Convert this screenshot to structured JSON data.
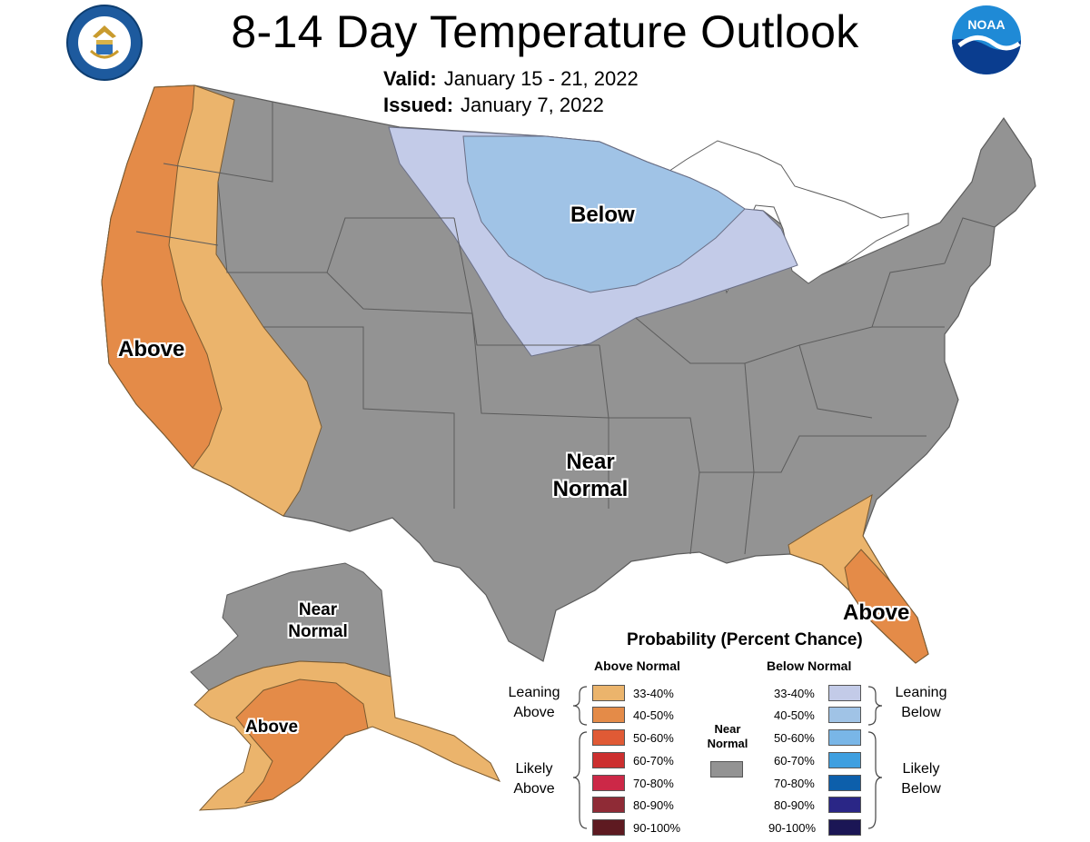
{
  "header": {
    "title": "8-14 Day Temperature Outlook",
    "valid_label": "Valid:",
    "valid_value": "January 15 - 21, 2022",
    "issued_label": "Issued:",
    "issued_value": "January 7, 2022"
  },
  "logos": {
    "left": "Department of Commerce seal",
    "right": "NOAA"
  },
  "map_labels": {
    "west": "Above",
    "north": "Below",
    "center_line1": "Near",
    "center_line2": "Normal",
    "florida": "Above",
    "alaska_near_line1": "Near",
    "alaska_near_line2": "Normal",
    "alaska_above": "Above"
  },
  "legend": {
    "title": "Probability (Percent Chance)",
    "above_header": "Above Normal",
    "below_header": "Below Normal",
    "near_label_line1": "Near",
    "near_label_line2": "Normal",
    "near_color": "#939393",
    "leaning_above_1": "Leaning",
    "leaning_above_2": "Above",
    "likely_above_1": "Likely",
    "likely_above_2": "Above",
    "leaning_below_1": "Leaning",
    "leaning_below_2": "Below",
    "likely_below_1": "Likely",
    "likely_below_2": "Below",
    "above": [
      {
        "range": "33-40%",
        "color": "#ebb46c"
      },
      {
        "range": "40-50%",
        "color": "#e48b48"
      },
      {
        "range": "50-60%",
        "color": "#e05a35"
      },
      {
        "range": "60-70%",
        "color": "#cc2f2f"
      },
      {
        "range": "70-80%",
        "color": "#cc2847"
      },
      {
        "range": "80-90%",
        "color": "#8f2b36"
      },
      {
        "range": "90-100%",
        "color": "#5e1a21"
      }
    ],
    "below": [
      {
        "range": "33-40%",
        "color": "#c3cbe8"
      },
      {
        "range": "40-50%",
        "color": "#a0c3e6"
      },
      {
        "range": "50-60%",
        "color": "#79b6e7"
      },
      {
        "range": "60-70%",
        "color": "#3e9fe0"
      },
      {
        "range": "70-80%",
        "color": "#0d5fab"
      },
      {
        "range": "80-90%",
        "color": "#2a2686"
      },
      {
        "range": "90-100%",
        "color": "#1b1655"
      }
    ]
  }
}
